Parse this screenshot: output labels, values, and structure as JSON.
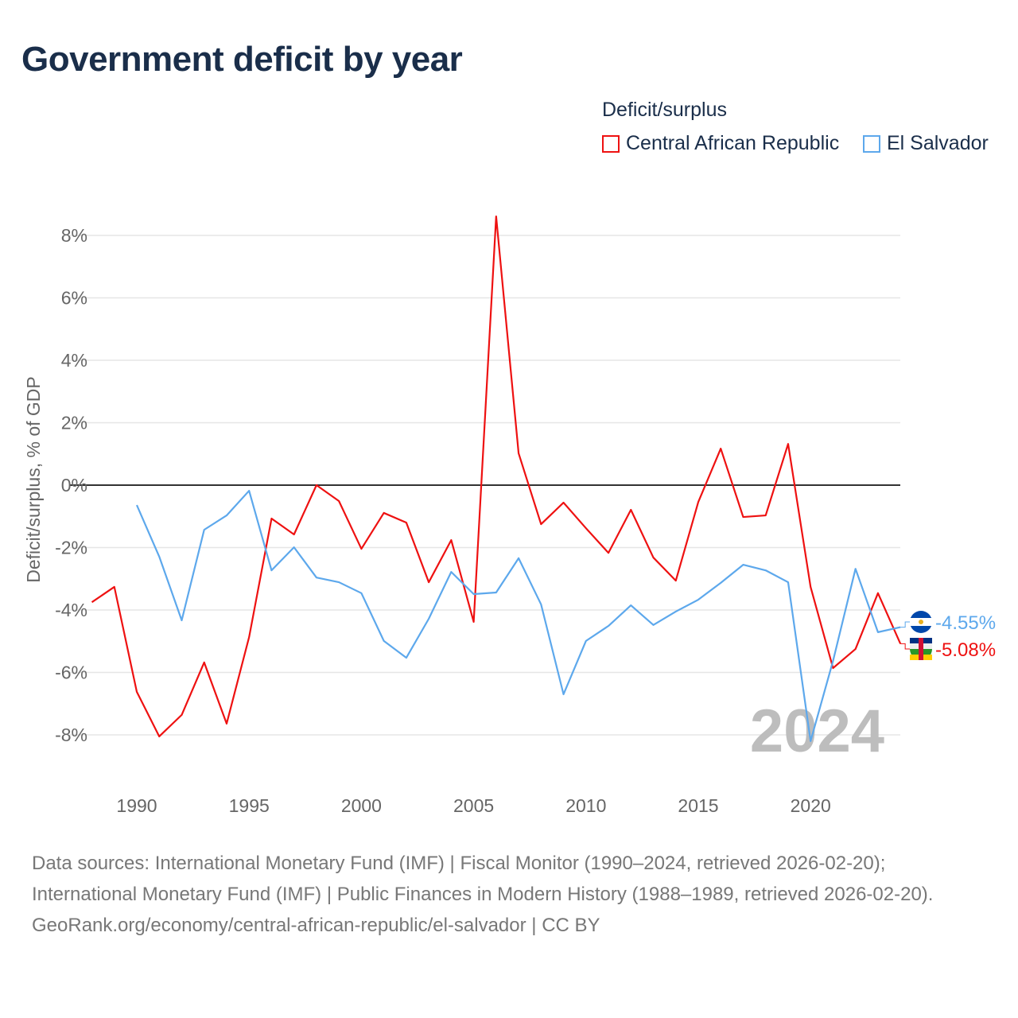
{
  "title": "Government deficit by year",
  "legend": {
    "title": "Deficit/surplus",
    "items": [
      {
        "name": "Central African Republic",
        "color": "#ee1111"
      },
      {
        "name": "El Salvador",
        "color": "#5da8ec"
      }
    ]
  },
  "year_watermark": "2024",
  "source": {
    "line1": "Data sources: International Monetary Fund (IMF) | Fiscal Monitor (1990–2024, retrieved 2026-02-20); International Monetary Fund (IMF) | Public Finances in Modern History (1988–1989, retrieved 2026-02-20).",
    "line2": "GeoRank.org/economy/central-african-republic/el-salvador | CC BY"
  },
  "chart_data": {
    "type": "line",
    "title": "Government deficit by year",
    "ylabel": "Deficit/surplus, % of GDP",
    "xlabel": "",
    "xlim": [
      1988,
      2024
    ],
    "ylim": [
      -9,
      9
    ],
    "yticks": [
      -8,
      -6,
      -4,
      -2,
      0,
      2,
      4,
      6,
      8
    ],
    "ytick_labels": [
      "-8%",
      "-6%",
      "-4%",
      "-2%",
      "0%",
      "2%",
      "4%",
      "6%",
      "8%"
    ],
    "xticks": [
      1990,
      1995,
      2000,
      2005,
      2010,
      2015,
      2020
    ],
    "grid": true,
    "legend_position": "top-right",
    "series": [
      {
        "name": "Central African Republic",
        "color": "#ee1111",
        "end_label": "-5.08%",
        "x": [
          1988,
          1989,
          1990,
          1991,
          1992,
          1993,
          1994,
          1995,
          1996,
          1997,
          1998,
          1999,
          2000,
          2001,
          2002,
          2003,
          2004,
          2005,
          2006,
          2007,
          2008,
          2009,
          2010,
          2011,
          2012,
          2013,
          2014,
          2015,
          2016,
          2017,
          2018,
          2019,
          2020,
          2021,
          2022,
          2023,
          2024
        ],
        "values": [
          -3.75,
          -3.26,
          -6.62,
          -8.05,
          -7.36,
          -5.68,
          -7.64,
          -4.87,
          -1.07,
          -1.58,
          0.0,
          -0.51,
          -2.04,
          -0.89,
          -1.2,
          -3.11,
          -1.76,
          -4.38,
          8.61,
          1.02,
          -1.25,
          -0.56,
          -1.38,
          -2.17,
          -0.79,
          -2.32,
          -3.06,
          -0.54,
          1.17,
          -1.02,
          -0.97,
          1.32,
          -3.26,
          -5.86,
          -5.25,
          -3.46,
          -5.08
        ]
      },
      {
        "name": "El Salvador",
        "color": "#5da8ec",
        "end_label": "-4.55%",
        "x": [
          1990,
          1991,
          1992,
          1993,
          1994,
          1995,
          1996,
          1997,
          1998,
          1999,
          2000,
          2001,
          2002,
          2003,
          2004,
          2005,
          2006,
          2007,
          2008,
          2009,
          2010,
          2011,
          2012,
          2013,
          2014,
          2015,
          2016,
          2017,
          2018,
          2019,
          2020,
          2021,
          2022,
          2023,
          2024
        ],
        "values": [
          -0.64,
          -2.29,
          -4.33,
          -1.43,
          -0.97,
          -0.18,
          -2.73,
          -1.99,
          -2.96,
          -3.11,
          -3.46,
          -4.99,
          -5.53,
          -4.28,
          -2.78,
          -3.49,
          -3.44,
          -2.34,
          -3.82,
          -6.7,
          -4.99,
          -4.51,
          -3.85,
          -4.48,
          -4.05,
          -3.67,
          -3.13,
          -2.55,
          -2.73,
          -3.11,
          -8.2,
          -5.63,
          -2.68,
          -4.71,
          -4.55
        ]
      }
    ]
  }
}
